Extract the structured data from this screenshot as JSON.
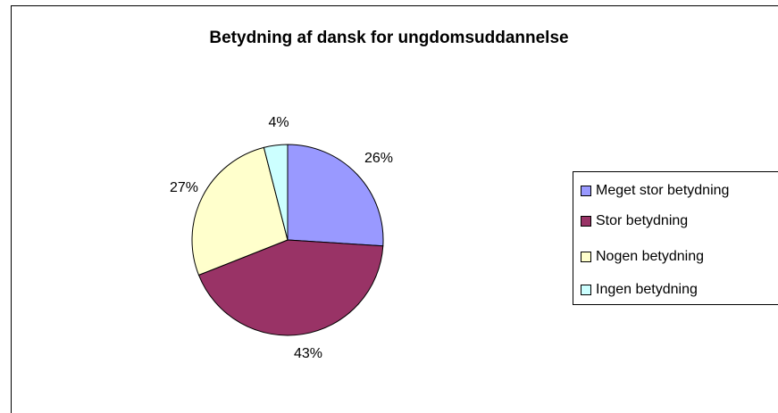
{
  "chart_data": {
    "type": "pie",
    "title": "Betydning af dansk for ungdomsuddannelse",
    "categories": [
      "Meget stor betydning",
      "Stor betydning",
      "Nogen betydning",
      "Ingen betydning"
    ],
    "values": [
      26,
      43,
      27,
      4
    ],
    "labels": [
      "26%",
      "43%",
      "27%",
      "4%"
    ],
    "colors": [
      "#9999ff",
      "#993366",
      "#ffffcc",
      "#ccffff"
    ],
    "legend_position": "right"
  }
}
